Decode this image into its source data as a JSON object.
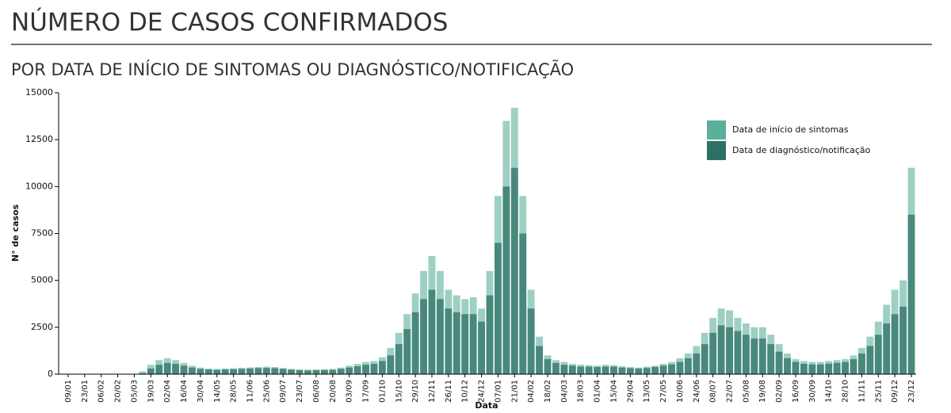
{
  "chart_data": {
    "type": "bar",
    "title": "NÚMERO DE CASOS CONFIRMADOS",
    "subtitle": "POR DATA DE INÍCIO DE SINTOMAS OU DIAGNÓSTICO/NOTIFICAÇÃO",
    "y_label": "N° de casos",
    "x_label": "Data",
    "categories": [
      "09/01",
      null,
      "23/01",
      null,
      "06/02",
      null,
      "20/02",
      null,
      "05/03",
      null,
      "19/03",
      null,
      "02/04",
      null,
      "16/04",
      null,
      "30/04",
      null,
      "14/05",
      null,
      "28/05",
      null,
      "11/06",
      null,
      "25/06",
      null,
      "09/07",
      null,
      "23/07",
      null,
      "06/08",
      null,
      "20/08",
      null,
      "03/09",
      null,
      "17/09",
      null,
      "01/10",
      null,
      "15/10",
      null,
      "29/10",
      null,
      "12/11",
      null,
      "26/11",
      null,
      "10/12",
      null,
      "24/12",
      null,
      "07/01",
      null,
      "21/01",
      null,
      "04/02",
      null,
      "18/02",
      null,
      "04/03",
      null,
      "18/03",
      null,
      "01/04",
      null,
      "15/04",
      null,
      "29/04",
      null,
      "13/05",
      null,
      "27/05",
      null,
      "10/06",
      null,
      "24/06",
      null,
      "08/07",
      null,
      "22/07",
      null,
      "05/08",
      null,
      "19/08",
      null,
      "02/09",
      null,
      "16/09",
      null,
      "30/09",
      null,
      "14/10",
      null,
      "28/10",
      null,
      "11/11",
      null,
      "25/11",
      null,
      "09/12",
      null,
      "23/12"
    ],
    "series": [
      {
        "name": "Data de início de sintomas",
        "color": "#5bb09b",
        "values": [
          0,
          0,
          0,
          0,
          0,
          0,
          0,
          0,
          0,
          150,
          500,
          750,
          850,
          750,
          600,
          450,
          350,
          300,
          280,
          300,
          320,
          340,
          360,
          380,
          400,
          380,
          330,
          280,
          250,
          240,
          250,
          260,
          280,
          350,
          450,
          550,
          650,
          700,
          900,
          1400,
          2200,
          3200,
          4300,
          5500,
          6300,
          5500,
          4500,
          4200,
          4000,
          4100,
          3500,
          5500,
          9500,
          13500,
          14200,
          9500,
          4500,
          2000,
          1000,
          750,
          650,
          550,
          500,
          480,
          450,
          500,
          480,
          420,
          380,
          350,
          400,
          450,
          550,
          650,
          850,
          1100,
          1500,
          2200,
          3000,
          3500,
          3400,
          3000,
          2700,
          2500,
          2500,
          2100,
          1600,
          1100,
          800,
          700,
          650,
          650,
          700,
          750,
          800,
          1000,
          1400,
          2000,
          2800,
          3700,
          4500,
          5000,
          11000
        ]
      },
      {
        "name": "Data de diagnóstico/notificação",
        "color": "#2d7066",
        "values": [
          0,
          0,
          0,
          0,
          0,
          0,
          0,
          0,
          0,
          50,
          300,
          500,
          600,
          550,
          450,
          350,
          280,
          250,
          230,
          250,
          260,
          280,
          300,
          320,
          330,
          320,
          280,
          240,
          210,
          200,
          210,
          220,
          230,
          280,
          350,
          420,
          500,
          550,
          700,
          1000,
          1600,
          2400,
          3300,
          4000,
          4500,
          4000,
          3500,
          3300,
          3200,
          3200,
          2800,
          4200,
          7000,
          10000,
          11000,
          7500,
          3500,
          1500,
          800,
          600,
          500,
          450,
          400,
          400,
          380,
          400,
          400,
          350,
          320,
          300,
          330,
          380,
          450,
          520,
          650,
          850,
          1100,
          1600,
          2200,
          2600,
          2500,
          2300,
          2100,
          1900,
          1900,
          1600,
          1200,
          850,
          650,
          550,
          520,
          520,
          560,
          600,
          650,
          800,
          1100,
          1500,
          2100,
          2700,
          3200,
          3600,
          8500
        ]
      }
    ],
    "ylim": [
      0,
      15000
    ],
    "yticks": [
      0,
      2500,
      5000,
      7500,
      10000,
      12500,
      15000
    ],
    "legend": "top-right"
  }
}
